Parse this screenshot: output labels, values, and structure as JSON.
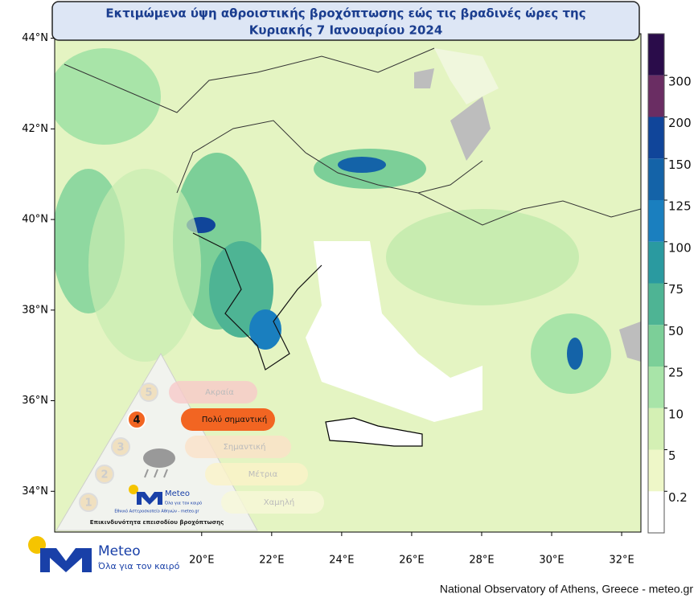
{
  "title_lines": [
    "Εκτιμώμενα ύψη αθροιστικής βροχόπτωσης εώς τις βραδινές ώρες της",
    "Κυριακής 7 Ιανουαρίου 2024"
  ],
  "map": {
    "xlim": [
      15.8,
      32.55
    ],
    "ylim": [
      33.1,
      44.1
    ],
    "xticks": [
      {
        "value": 20,
        "label": "20°E"
      },
      {
        "value": 22,
        "label": "22°E"
      },
      {
        "value": 24,
        "label": "24°E"
      },
      {
        "value": 26,
        "label": "26°E"
      },
      {
        "value": 28,
        "label": "28°E"
      },
      {
        "value": 30,
        "label": "30°E"
      },
      {
        "value": 32,
        "label": "32°E"
      }
    ],
    "yticks": [
      {
        "value": 34,
        "label": "34°N"
      },
      {
        "value": 36,
        "label": "36°N"
      },
      {
        "value": 38,
        "label": "38°N"
      },
      {
        "value": 40,
        "label": "40°N"
      },
      {
        "value": 42,
        "label": "42°N"
      },
      {
        "value": 44,
        "label": "44°N"
      }
    ]
  },
  "colorbar": {
    "ticks": [
      0.2,
      5,
      10,
      25,
      50,
      75,
      100,
      125,
      150,
      200,
      300
    ],
    "colors": [
      "#ffffff",
      "#eef7c8",
      "#d4f0b4",
      "#a8e4a8",
      "#7ccf98",
      "#4eb494",
      "#2a9aa0",
      "#1a7fbf",
      "#1463a8",
      "#10459a",
      "#6a2d63",
      "#2a0c4a"
    ]
  },
  "hazard": {
    "levels": [
      {
        "number": 5,
        "label": "Ακραία"
      },
      {
        "number": 4,
        "label": "Πολύ σημαντική"
      },
      {
        "number": 3,
        "label": "Σημαντική"
      },
      {
        "number": 2,
        "label": "Μέτρια"
      },
      {
        "number": 1,
        "label": "Χαμηλή"
      }
    ],
    "brand": "Meteo",
    "slogan": "Όλα για τον καιρό",
    "institute": "Εθνικό Αστεροσκοπείο Αθηνών - meteo.gr",
    "caption": "Επικινδυνότητα επεισοδίου βροχόπτωσης"
  },
  "logo": {
    "brand": "Meteo",
    "slogan": "Όλα για τον καιρό"
  },
  "footer": "National Observatory of Athens, Greece - meteo.gr"
}
